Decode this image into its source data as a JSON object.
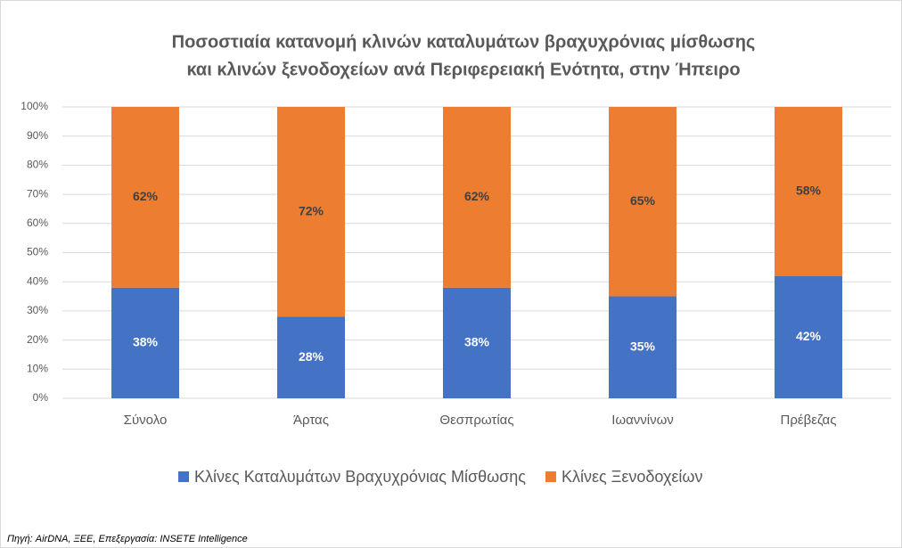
{
  "chart_data": {
    "type": "bar",
    "stacked": true,
    "title": [
      "Ποσοστιαία κατανομή κλινών καταλυμάτων βραχυχρόνιας μίσθωσης",
      "και κλινών ξενοδοχείων ανά Περιφερειακή Ενότητα, στην Ήπειρο"
    ],
    "categories": [
      "Σύνολο",
      "Άρτας",
      "Θεσπρωτίας",
      "Ιωαννίνων",
      "Πρέβεζας"
    ],
    "series": [
      {
        "name": "Κλίνες Καταλυμάτων Βραχυχρόνιας Μίσθωσης",
        "color": "#4472c4",
        "values": [
          38,
          28,
          38,
          35,
          42
        ],
        "value_labels": [
          "38%",
          "28%",
          "38%",
          "35%",
          "42%"
        ]
      },
      {
        "name": "Κλίνες Ξενοδοχείων",
        "color": "#ed7d31",
        "values": [
          62,
          72,
          62,
          65,
          58
        ],
        "value_labels": [
          "62%",
          "72%",
          "62%",
          "65%",
          "58%"
        ]
      }
    ],
    "ylim": [
      0,
      100
    ],
    "yticks": [
      {
        "value": 0,
        "label": "0%"
      },
      {
        "value": 10,
        "label": "10%"
      },
      {
        "value": 20,
        "label": "20%"
      },
      {
        "value": 30,
        "label": "30%"
      },
      {
        "value": 40,
        "label": "40%"
      },
      {
        "value": 50,
        "label": "50%"
      },
      {
        "value": 60,
        "label": "60%"
      },
      {
        "value": 70,
        "label": "70%"
      },
      {
        "value": 80,
        "label": "80%"
      },
      {
        "value": 90,
        "label": "90%"
      },
      {
        "value": 100,
        "label": "100%"
      }
    ],
    "grid": true,
    "legend": "bottom",
    "source": "Πηγή: AirDNA, ΞΕΕ, Επεξεργασία: INSETE Intelligence"
  }
}
